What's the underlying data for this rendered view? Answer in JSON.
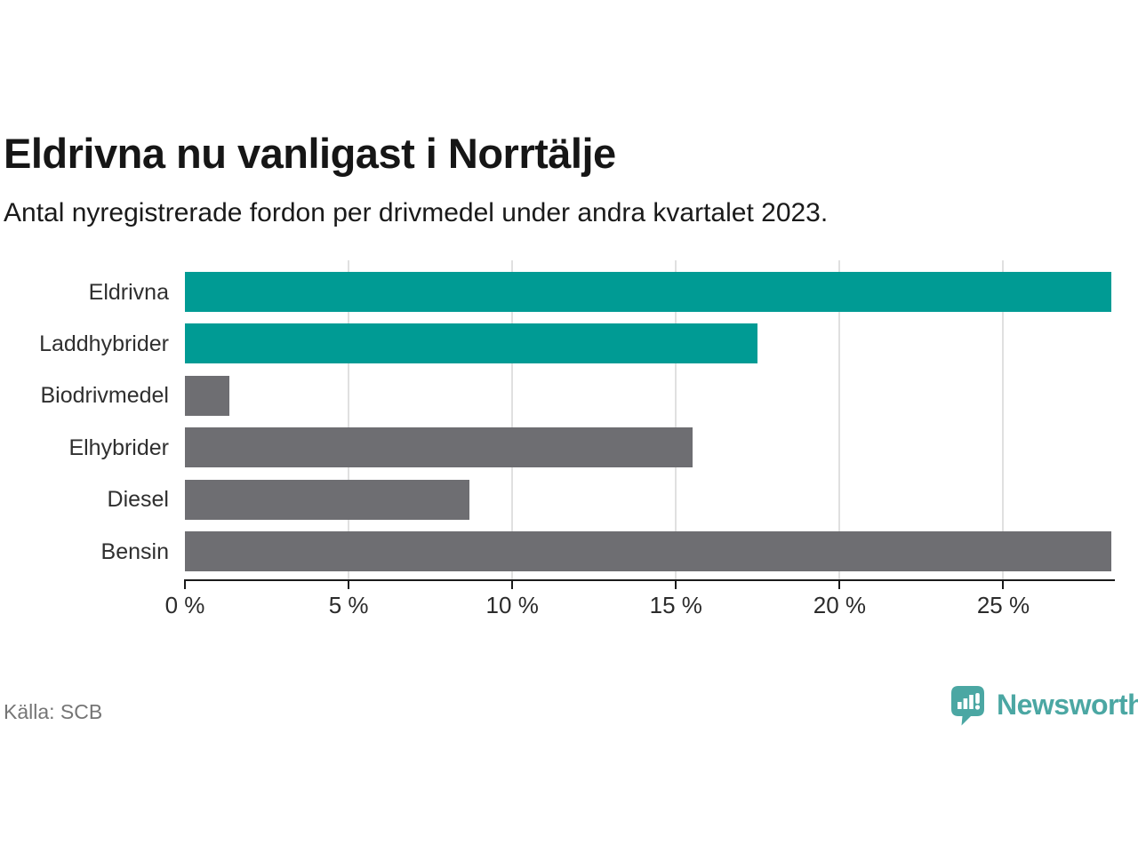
{
  "header": {
    "title": "Eldrivna nu vanligast i Norrtälje",
    "subtitle": "Antal nyregistrerade fordon per drivmedel under andra kvartalet 2023."
  },
  "chart_data": {
    "type": "bar",
    "orientation": "horizontal",
    "title": "Eldrivna nu vanligast i Norrtälje",
    "subtitle": "Antal nyregistrerade fordon per drivmedel under andra kvartalet 2023.",
    "categories": [
      "Eldrivna",
      "Laddhybrider",
      "Biodrivmedel",
      "Elhybrider",
      "Diesel",
      "Bensin"
    ],
    "values": [
      28.3,
      17.5,
      1.35,
      15.5,
      8.7,
      28.3
    ],
    "unit": "%",
    "xlim": [
      0,
      28.3
    ],
    "ticks": [
      {
        "value": 0,
        "label": "0 %"
      },
      {
        "value": 5,
        "label": "5 %"
      },
      {
        "value": 10,
        "label": "10 %"
      },
      {
        "value": 15,
        "label": "15 %"
      },
      {
        "value": 20,
        "label": "20 %"
      },
      {
        "value": 25,
        "label": "25 %"
      }
    ],
    "grid": true,
    "legend": false,
    "bar_colors": [
      "#009b94",
      "#009b94",
      "#6e6e72",
      "#6e6e72",
      "#6e6e72",
      "#6e6e72"
    ]
  },
  "colors": {
    "highlight": "#009b94",
    "neutral": "#6e6e72",
    "gridline": "#e0e0e0",
    "axis": "#1a1a1a",
    "brand": "#4ba7a3"
  },
  "footer": {
    "source": "Källa: SCB",
    "brand_name": "Newsworthy"
  }
}
